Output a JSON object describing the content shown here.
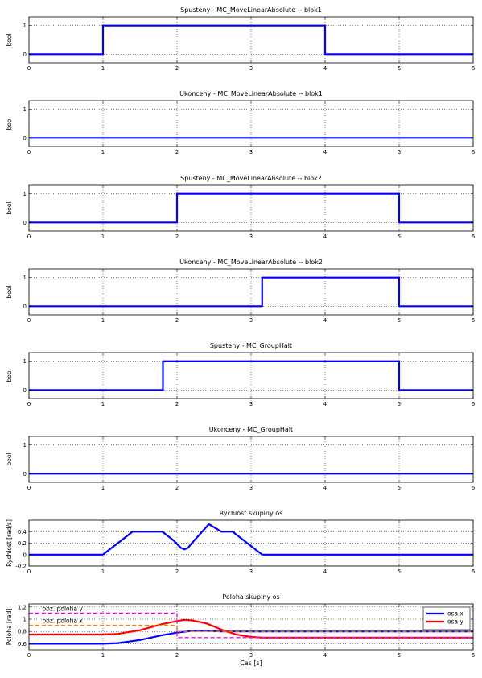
{
  "chart_data": [
    {
      "type": "line",
      "title": "Spusteny - MC_MoveLinearAbsolute -- blok1",
      "ylabel": "bool",
      "xlim": [
        0,
        6
      ],
      "ylim": [
        -0.3,
        1.3
      ],
      "xticks": [
        0,
        1,
        2,
        3,
        4,
        5,
        6
      ],
      "yticks": [
        0,
        1
      ],
      "grid": true,
      "series": [
        {
          "color": "#0000ff",
          "style": "solid",
          "x": [
            0,
            1,
            1,
            4,
            4,
            6
          ],
          "y": [
            0,
            0,
            1,
            1,
            0,
            0
          ]
        }
      ]
    },
    {
      "type": "line",
      "title": "Ukonceny - MC_MoveLinearAbsolute -- blok1",
      "ylabel": "bool",
      "xlim": [
        0,
        6
      ],
      "ylim": [
        -0.3,
        1.3
      ],
      "xticks": [
        0,
        1,
        2,
        3,
        4,
        5,
        6
      ],
      "yticks": [
        0,
        1
      ],
      "grid": true,
      "series": [
        {
          "color": "#0000ff",
          "style": "solid",
          "x": [
            0,
            6
          ],
          "y": [
            0,
            0
          ]
        }
      ]
    },
    {
      "type": "line",
      "title": "Spusteny - MC_MoveLinearAbsolute -- blok2",
      "ylabel": "bool",
      "xlim": [
        0,
        6
      ],
      "ylim": [
        -0.3,
        1.3
      ],
      "xticks": [
        0,
        1,
        2,
        3,
        4,
        5,
        6
      ],
      "yticks": [
        0,
        1
      ],
      "grid": true,
      "series": [
        {
          "color": "#0000ff",
          "style": "solid",
          "x": [
            0,
            2,
            2,
            5,
            5,
            6
          ],
          "y": [
            0,
            0,
            1,
            1,
            0,
            0
          ]
        }
      ]
    },
    {
      "type": "line",
      "title": "Ukonceny - MC_MoveLinearAbsolute -- blok2",
      "ylabel": "bool",
      "xlim": [
        0,
        6
      ],
      "ylim": [
        -0.3,
        1.3
      ],
      "xticks": [
        0,
        1,
        2,
        3,
        4,
        5,
        6
      ],
      "yticks": [
        0,
        1
      ],
      "grid": true,
      "series": [
        {
          "color": "#0000ff",
          "style": "solid",
          "x": [
            0,
            3.15,
            3.15,
            5,
            5,
            6
          ],
          "y": [
            0,
            0,
            1,
            1,
            0,
            0
          ]
        }
      ]
    },
    {
      "type": "line",
      "title": "Spusteny - MC_GroupHalt",
      "ylabel": "bool",
      "xlim": [
        0,
        6
      ],
      "ylim": [
        -0.3,
        1.3
      ],
      "xticks": [
        0,
        1,
        2,
        3,
        4,
        5,
        6
      ],
      "yticks": [
        0,
        1
      ],
      "grid": true,
      "series": [
        {
          "color": "#0000ff",
          "style": "solid",
          "x": [
            0,
            1.81,
            1.81,
            5,
            5,
            6
          ],
          "y": [
            0,
            0,
            1,
            1,
            0,
            0
          ]
        }
      ]
    },
    {
      "type": "line",
      "title": "Ukonceny - MC_GroupHalt",
      "ylabel": "bool",
      "xlim": [
        0,
        6
      ],
      "ylim": [
        -0.3,
        1.3
      ],
      "xticks": [
        0,
        1,
        2,
        3,
        4,
        5,
        6
      ],
      "yticks": [
        0,
        1
      ],
      "grid": true,
      "series": [
        {
          "color": "#0000ff",
          "style": "solid",
          "x": [
            0,
            6
          ],
          "y": [
            0,
            0
          ]
        }
      ]
    },
    {
      "type": "line",
      "title": "Rychlost skupiny os",
      "ylabel": "Rychlost [rad/s]",
      "xlim": [
        0,
        6
      ],
      "ylim": [
        -0.2,
        0.6
      ],
      "xticks": [
        0,
        1,
        2,
        3,
        4,
        5,
        6
      ],
      "yticks": [
        -0.2,
        0,
        0.2,
        0.4
      ],
      "grid": true,
      "series": [
        {
          "color": "#0000ff",
          "style": "solid",
          "x": [
            0,
            1.0,
            1.4,
            1.8,
            1.95,
            2.05,
            2.1,
            2.15,
            2.2,
            2.43,
            2.6,
            2.75,
            3.0,
            3.15,
            6
          ],
          "y": [
            0,
            0,
            0.4,
            0.4,
            0.25,
            0.12,
            0.09,
            0.12,
            0.2,
            0.53,
            0.4,
            0.4,
            0.15,
            0,
            0
          ]
        }
      ]
    },
    {
      "type": "line",
      "title": "Poloha skupiny os",
      "ylabel": "Poloha [rad]",
      "xlabel": "Cas [s]",
      "xlim": [
        0,
        6
      ],
      "ylim": [
        0.5,
        1.25
      ],
      "xticks": [
        0,
        1,
        2,
        3,
        4,
        5,
        6
      ],
      "yticks": [
        0.6,
        0.8,
        1.0,
        1.2
      ],
      "yticklabels": [
        "0.6",
        "0.8",
        "1",
        "1.2"
      ],
      "grid": true,
      "legend": "top-right",
      "series": [
        {
          "name": "osa x",
          "color": "#0000ff",
          "style": "solid",
          "x": [
            0,
            1.0,
            1.2,
            1.5,
            1.8,
            2.0,
            2.2,
            2.4,
            2.6,
            2.8,
            3.0,
            3.15,
            6
          ],
          "y": [
            0.6,
            0.6,
            0.61,
            0.66,
            0.74,
            0.78,
            0.81,
            0.81,
            0.8,
            0.8,
            0.8,
            0.8,
            0.8
          ]
        },
        {
          "name": "osa y",
          "color": "#ff0000",
          "style": "solid",
          "x": [
            0,
            1.0,
            1.2,
            1.5,
            1.8,
            2.0,
            2.1,
            2.2,
            2.4,
            2.6,
            2.8,
            3.0,
            3.15,
            6
          ],
          "y": [
            0.75,
            0.75,
            0.76,
            0.82,
            0.92,
            0.97,
            0.99,
            0.98,
            0.93,
            0.83,
            0.75,
            0.71,
            0.7,
            0.7
          ]
        },
        {
          "color": "#ff00ff",
          "style": "dashed",
          "x": [
            0,
            2,
            2,
            6
          ],
          "y": [
            1.1,
            1.1,
            0.7,
            0.7
          ]
        },
        {
          "color": "#ff8000",
          "style": "dashed",
          "x": [
            0,
            2,
            2,
            6
          ],
          "y": [
            0.9,
            0.9,
            0.8,
            0.8
          ]
        }
      ],
      "annotations": [
        {
          "text": "poz. poloha y",
          "x": 0.18,
          "y": 1.14
        },
        {
          "text": "poz. poloha x",
          "x": 0.18,
          "y": 0.94
        }
      ]
    }
  ]
}
